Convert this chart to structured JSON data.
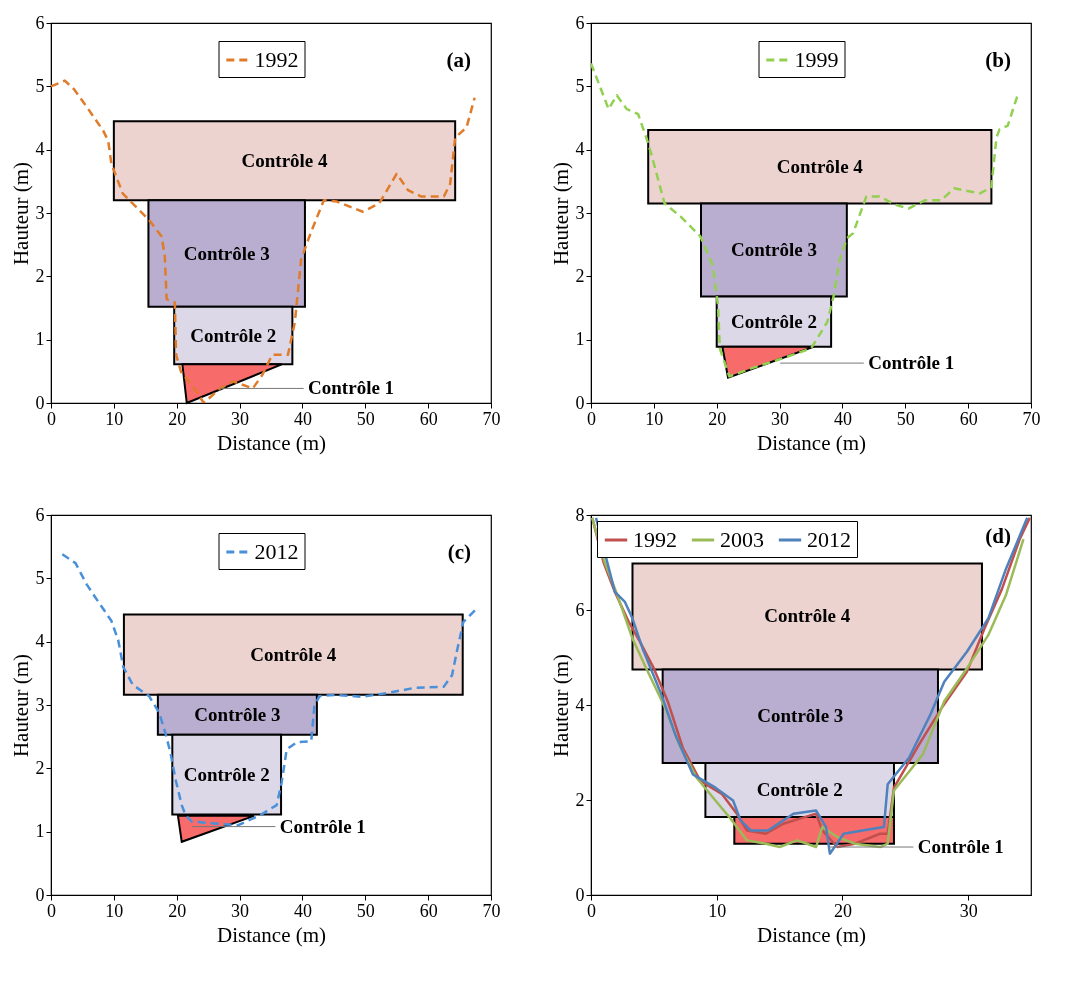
{
  "chart_data": [
    {
      "type": "line",
      "title": "(a)",
      "xlabel": "Distance (m)",
      "ylabel": "Hauteur (m)",
      "xlim": [
        0,
        70
      ],
      "xticks": [
        0,
        10,
        20,
        30,
        40,
        50,
        60,
        70
      ],
      "ylim": [
        0,
        6
      ],
      "yticks": [
        0,
        1,
        2,
        3,
        4,
        5,
        6
      ],
      "legend": "top",
      "line_style": "dashed",
      "series": [
        {
          "name": "1992",
          "color": "#e07b2a",
          "x": [
            0,
            2.2,
            3.7,
            5.8,
            8.3,
            9.1,
            9.6,
            11.4,
            13.5,
            15.6,
            17.6,
            18.1,
            18.4,
            19.7,
            19.9,
            20.7,
            22.8,
            24.3,
            26.9,
            29,
            32.1,
            33.6,
            35.2,
            37.7,
            38.8,
            39.8,
            41.3,
            43.4,
            45.5,
            49.6,
            52.2,
            55,
            56.8,
            58.9,
            62.5,
            63.5,
            64.3,
            66.1,
            67.4
          ],
          "values": [
            5.0,
            5.09,
            4.95,
            4.66,
            4.3,
            4.14,
            3.78,
            3.31,
            3.1,
            2.89,
            2.63,
            2.32,
            1.64,
            1.59,
            0.76,
            0.49,
            0.23,
            0,
            0.23,
            0.34,
            0.23,
            0.44,
            0.76,
            0.76,
            1.28,
            2.27,
            2.68,
            3.2,
            3.18,
            3.02,
            3.15,
            3.62,
            3.36,
            3.26,
            3.26,
            3.46,
            4.19,
            4.35,
            4.82
          ]
        },
        {
          "type": "area",
          "color": "#ecd3d0",
          "x": [
            10.0,
            64.3
          ],
          "values": [
            null,
            null
          ],
          "upper": [
            4.45,
            4.45
          ],
          "lower": [
            3.2,
            3.2
          ]
        },
        {
          "type": "area",
          "color": "#b9aed0",
          "x": [
            15.5,
            40.4
          ],
          "values": [
            null,
            null
          ],
          "upper": [
            3.2,
            3.2
          ],
          "lower": [
            1.52,
            1.52
          ]
        },
        {
          "type": "area",
          "color": "#dcd8e8",
          "x": [
            19.6,
            38.4
          ],
          "values": [
            null,
            null
          ],
          "upper": [
            1.52,
            1.52
          ],
          "lower": [
            0.61,
            0.61
          ]
        },
        {
          "type": "area",
          "color": "#f76b6b",
          "x": [
            20.9,
            21.6,
            36.7
          ],
          "values": [
            null,
            null,
            null
          ],
          "upper": [
            0.61,
            0.61,
            0.61
          ],
          "lower": [
            0.61,
            0,
            0.61
          ]
        }
      ],
      "annotations": [
        "Contrôle 4",
        "Contrôle 3",
        "Contrôle 2",
        {
          "text": "Contrôle 1",
          "x": 26.9,
          "y": 0.23
        }
      ]
    },
    {
      "type": "line",
      "title": "(b)",
      "xlabel": "Distance (m)",
      "ylabel": "Hauteur (m)",
      "xlim": [
        0,
        70
      ],
      "xticks": [
        0,
        10,
        20,
        30,
        40,
        50,
        60,
        70
      ],
      "ylim": [
        0,
        6
      ],
      "yticks": [
        0,
        1,
        2,
        3,
        4,
        5,
        6
      ],
      "legend": "top",
      "line_style": "dashed",
      "series": [
        {
          "name": "1999",
          "color": "#92d050",
          "x": [
            0,
            1.3,
            2.8,
            4.1,
            5.7,
            7.5,
            8.8,
            9.6,
            11.7,
            14.3,
            17.4,
            19.4,
            20.2,
            20.5,
            22,
            25.6,
            30.3,
            35,
            37.6,
            38.6,
            39.6,
            40.7,
            41.7,
            43.8,
            45.9,
            48.4,
            50.5,
            53.1,
            55.7,
            57.8,
            61.9,
            63.7,
            64.5,
            65,
            66.3,
            67.9
          ],
          "values": [
            5.36,
            5.03,
            4.64,
            4.86,
            4.64,
            4.56,
            4.19,
            3.93,
            3.15,
            2.94,
            2.63,
            2.16,
            1.54,
            0.86,
            0.42,
            0.55,
            0.7,
            0.86,
            1.28,
            1.69,
            2.27,
            2.6,
            2.68,
            3.26,
            3.26,
            3.13,
            3.07,
            3.2,
            3.2,
            3.39,
            3.31,
            3.41,
            4.19,
            4.32,
            4.38,
            4.87
          ]
        },
        {
          "type": "area",
          "color": "#ecd3d0",
          "x": [
            9.1,
            63.7
          ],
          "values": [
            null,
            null
          ],
          "upper": [
            4.31,
            4.31
          ],
          "lower": [
            3.15,
            3.15
          ]
        },
        {
          "type": "area",
          "color": "#b9aed0",
          "x": [
            17.5,
            40.7
          ],
          "values": [
            null,
            null
          ],
          "upper": [
            3.15,
            3.15
          ],
          "lower": [
            1.68,
            1.68
          ]
        },
        {
          "type": "area",
          "color": "#dcd8e8",
          "x": [
            20.0,
            38.2
          ],
          "values": [
            null,
            null
          ],
          "upper": [
            1.68,
            1.68
          ],
          "lower": [
            0.89,
            0.89
          ]
        },
        {
          "type": "area",
          "color": "#f76b6b",
          "x": [
            20.9,
            21.8,
            35.5
          ],
          "values": [
            null,
            null,
            null
          ],
          "upper": [
            0.89,
            0.89,
            0.89
          ],
          "lower": [
            0.89,
            0.4,
            0.89
          ]
        }
      ],
      "annotations": [
        "Contrôle 4",
        "Contrôle 3",
        "Contrôle 2",
        {
          "text": "Contrôle 1",
          "x": 30.1,
          "y": 0.63
        }
      ]
    },
    {
      "type": "line",
      "title": "(c)",
      "xlabel": "Distance (m)",
      "ylabel": "Hauteur (m)",
      "xlim": [
        0,
        70
      ],
      "xticks": [
        0,
        10,
        20,
        30,
        40,
        50,
        60,
        70
      ],
      "ylim": [
        0,
        6
      ],
      "yticks": [
        0,
        1,
        2,
        3,
        4,
        5,
        6
      ],
      "legend": "top",
      "line_style": "dashed",
      "series": [
        {
          "name": "2012",
          "color": "#4a90d9",
          "x": [
            1.8,
            3.9,
            5.7,
            7.8,
            9.6,
            10.7,
            11.5,
            13,
            15.6,
            17.2,
            18.2,
            19,
            19.8,
            20.8,
            21.4,
            22.4,
            26,
            29.7,
            33.3,
            35.9,
            36.7,
            37.5,
            39.1,
            41.4,
            41.9,
            42.7,
            45.3,
            49.5,
            53.6,
            57.8,
            62.5,
            63.8,
            64.6,
            65.6,
            67.7
          ],
          "values": [
            5.38,
            5.24,
            4.9,
            4.59,
            4.33,
            4.02,
            3.6,
            3.32,
            3.14,
            2.88,
            2.56,
            2.25,
            1.83,
            1.42,
            1.26,
            1.16,
            1.13,
            1.1,
            1.26,
            1.42,
            1.78,
            2.3,
            2.41,
            2.43,
            2.98,
            3.14,
            3.16,
            3.13,
            3.19,
            3.27,
            3.29,
            3.47,
            3.86,
            4.31,
            4.52
          ]
        },
        {
          "type": "area",
          "color": "#ecd3d0",
          "x": [
            11.6,
            65.5
          ],
          "values": [
            null,
            null
          ],
          "upper": [
            4.43,
            4.43
          ],
          "lower": [
            3.16,
            3.16
          ]
        },
        {
          "type": "area",
          "color": "#b9aed0",
          "x": [
            17.0,
            42.3
          ],
          "values": [
            null,
            null
          ],
          "upper": [
            3.16,
            3.16
          ],
          "lower": [
            2.53,
            2.53
          ]
        },
        {
          "type": "area",
          "color": "#dcd8e8",
          "x": [
            19.3,
            36.6
          ],
          "values": [
            null,
            null
          ],
          "upper": [
            2.53,
            2.53
          ],
          "lower": [
            1.27,
            1.27
          ]
        },
        {
          "type": "area",
          "color": "#f76b6b",
          "x": [
            20.2,
            20.8,
            32.3
          ],
          "values": [
            null,
            null,
            null
          ],
          "upper": [
            1.25,
            1.25,
            1.25
          ],
          "lower": [
            1.25,
            0.84,
            1.25
          ]
        }
      ],
      "annotations": [
        "Contrôle 4",
        "Contrôle 3",
        "Contrôle 2",
        {
          "text": "Contrôle 1",
          "x": 22.4,
          "y": 1.08
        }
      ]
    },
    {
      "type": "line",
      "title": "(d)",
      "xlabel": "Distance (m)",
      "ylabel": "Hauteur (m)",
      "xlim": [
        0,
        35
      ],
      "xticks": [
        0,
        10,
        20,
        30
      ],
      "ylim": [
        0,
        8
      ],
      "yticks": [
        0,
        2,
        4,
        6,
        8
      ],
      "legend": "top left",
      "line_style": "solid",
      "series": [
        {
          "name": "1992",
          "color": "#c0504d",
          "x": [
            0.1,
            1,
            1.9,
            3,
            3.9,
            5,
            6.1,
            7.3,
            8.7,
            10.4,
            11.6,
            12.4,
            13.9,
            15.3,
            17,
            17.9,
            18.4,
            19.6,
            21,
            23,
            23.6,
            24.1,
            26.1,
            27.9,
            29.9,
            31.3,
            32.7,
            34.1,
            34.9
          ],
          "values": [
            7.94,
            7.0,
            6.38,
            5.75,
            5.33,
            4.77,
            4.08,
            3.1,
            2.4,
            2.13,
            1.71,
            1.36,
            1.29,
            1.5,
            1.64,
            1.71,
            1.36,
            1.01,
            1.08,
            1.29,
            1.29,
            2.26,
            3.17,
            3.94,
            4.7,
            5.61,
            6.45,
            7.49,
            7.94
          ]
        },
        {
          "name": "2003",
          "color": "#9bbb59",
          "x": [
            0.1,
            1.1,
            2.1,
            3.3,
            4.4,
            5.9,
            7,
            8.4,
            9.9,
            11,
            12.4,
            13.9,
            15,
            16.4,
            17.9,
            18.4,
            19.6,
            21,
            23,
            23.6,
            24.1,
            26.4,
            28.1,
            29.9,
            31.6,
            33,
            34.4
          ],
          "values": [
            7.94,
            7.0,
            6.31,
            5.4,
            4.77,
            3.94,
            3.17,
            2.47,
            1.99,
            1.64,
            1.15,
            1.08,
            1.01,
            1.15,
            1.01,
            1.43,
            1.22,
            1.08,
            1.01,
            1.08,
            2.2,
            2.96,
            4.08,
            4.77,
            5.47,
            6.31,
            7.49
          ]
        },
        {
          "name": "2012",
          "color": "#4f81bd",
          "x": [
            0.4,
            1.3,
            1.9,
            2.7,
            3.3,
            4.1,
            5.6,
            6.7,
            8.1,
            9.9,
            11.3,
            11.9,
            12.7,
            14.1,
            16.1,
            17.9,
            18.7,
            19,
            20.1,
            21.6,
            23.3,
            23.6,
            25.3,
            27,
            28.1,
            29.9,
            31.6,
            33,
            34.7
          ],
          "values": [
            7.94,
            7.0,
            6.38,
            6.17,
            5.82,
            5.19,
            4.22,
            3.38,
            2.54,
            2.26,
            1.99,
            1.57,
            1.36,
            1.36,
            1.71,
            1.78,
            1.43,
            0.87,
            1.29,
            1.36,
            1.43,
            2.33,
            2.89,
            3.8,
            4.49,
            5.12,
            5.82,
            6.86,
            7.94
          ]
        },
        {
          "type": "area",
          "color": "#ecd3d0",
          "x": [
            3.3,
            31.1
          ],
          "values": [
            null,
            null
          ],
          "upper": [
            6.98,
            6.98
          ],
          "lower": [
            4.75,
            4.75
          ]
        },
        {
          "type": "area",
          "color": "#b9aed0",
          "x": [
            5.7,
            27.6
          ],
          "values": [
            null,
            null
          ],
          "upper": [
            4.75,
            4.75
          ],
          "lower": [
            2.78,
            2.78
          ]
        },
        {
          "type": "area",
          "color": "#dcd8e8",
          "x": [
            9.1,
            24.1
          ],
          "values": [
            null,
            null
          ],
          "upper": [
            2.78,
            2.78
          ],
          "lower": [
            1.64,
            1.64
          ]
        },
        {
          "type": "area",
          "color": "#f76b6b",
          "x": [
            11.4,
            24.1
          ],
          "values": [
            null,
            null
          ],
          "upper": [
            1.64,
            1.64
          ],
          "lower": [
            1.08,
            1.08
          ]
        }
      ],
      "annotations": [
        "Contrôle 4",
        "Contrôle 3",
        "Contrôle 2",
        {
          "text": "Contrôle 1",
          "x": 19,
          "y": 1.01
        }
      ]
    }
  ]
}
